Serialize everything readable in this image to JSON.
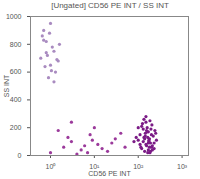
{
  "chart_data": {
    "type": "scatter",
    "title": "[Ungated] CD56 PE INT / SS INT",
    "x_label": "CD56 PE INT",
    "y_label": "SS INT",
    "log": "x",
    "xlim": [
      0.35,
      1400
    ],
    "ylim": [
      0,
      1000
    ],
    "xticks": [
      {
        "value": 1,
        "label": "10⁰"
      },
      {
        "value": 10,
        "label": "10¹"
      },
      {
        "value": 100,
        "label": "10²"
      },
      {
        "value": 1000,
        "label": "10³"
      }
    ],
    "yticks": [
      0,
      200,
      400,
      600,
      800,
      1000
    ],
    "series": [
      {
        "color": "#7b1b86",
        "x": [
          120,
          150,
          180,
          200,
          110,
          130,
          160,
          190,
          220,
          140,
          170,
          100,
          210,
          240,
          125,
          155,
          185,
          135,
          165,
          195,
          115,
          145,
          175,
          205,
          230,
          90,
          260,
          150,
          170,
          130,
          110,
          200,
          180,
          140,
          160,
          120,
          190,
          150,
          170,
          210,
          80,
          250,
          100,
          230,
          145,
          175,
          135,
          165,
          155,
          185
        ],
        "y": [
          50,
          80,
          120,
          60,
          150,
          100,
          200,
          90,
          140,
          30,
          170,
          110,
          40,
          180,
          230,
          70,
          250,
          130,
          20,
          190,
          60,
          160,
          100,
          220,
          90,
          130,
          110,
          280,
          40,
          190,
          80,
          150,
          60,
          120,
          170,
          210,
          30,
          240,
          90,
          70,
          100,
          160,
          200,
          50,
          140,
          110,
          260,
          130,
          180,
          20
        ]
      },
      {
        "color": "#a98bc0",
        "x": [
          0.6,
          0.8,
          1.0,
          1.2,
          0.7,
          0.9,
          1.1,
          1.5,
          0.65,
          0.85,
          1.3,
          1.0,
          0.75,
          1.6,
          0.95,
          1.2,
          0.8,
          1.05,
          0.7,
          1.4
        ],
        "y": [
          700,
          820,
          650,
          750,
          900,
          560,
          780,
          680,
          860,
          720,
          600,
          950,
          640,
          800,
          880,
          530,
          740,
          610,
          830,
          690
        ]
      },
      {
        "color": "#9b3a9b",
        "x": [
          1,
          2,
          3,
          5,
          8,
          12,
          20,
          30,
          1.5,
          4,
          6,
          10,
          15,
          25,
          40,
          2.5,
          7,
          50,
          3,
          9
        ],
        "y": [
          20,
          60,
          100,
          40,
          150,
          80,
          30,
          120,
          180,
          10,
          70,
          200,
          50,
          90,
          160,
          130,
          20,
          60,
          240,
          110
        ]
      }
    ]
  }
}
